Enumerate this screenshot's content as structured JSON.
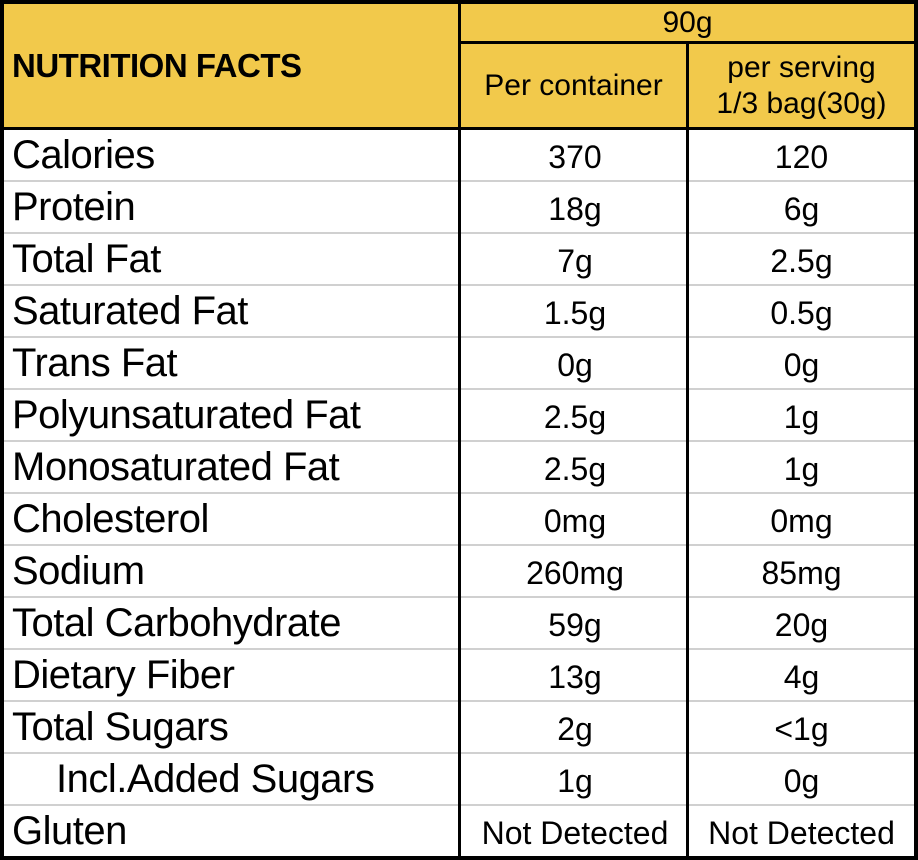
{
  "header": {
    "title": "NUTRITION FACTS",
    "serving_size": "90g",
    "col_per_container": "Per container",
    "col_per_serving_line1": "per serving",
    "col_per_serving_line2": "1/3 bag(30g)"
  },
  "rows": [
    {
      "label": "Calories",
      "per_container": "370",
      "per_serving": "120",
      "indent": false
    },
    {
      "label": "Protein",
      "per_container": "18g",
      "per_serving": "6g",
      "indent": false
    },
    {
      "label": "Total Fat",
      "per_container": "7g",
      "per_serving": "2.5g",
      "indent": false
    },
    {
      "label": "Saturated Fat",
      "per_container": "1.5g",
      "per_serving": "0.5g",
      "indent": false
    },
    {
      "label": "Trans Fat",
      "per_container": "0g",
      "per_serving": "0g",
      "indent": false
    },
    {
      "label": "Polyunsaturated Fat",
      "per_container": "2.5g",
      "per_serving": "1g",
      "indent": false
    },
    {
      "label": "Monosaturated Fat",
      "per_container": "2.5g",
      "per_serving": "1g",
      "indent": false
    },
    {
      "label": "Cholesterol",
      "per_container": "0mg",
      "per_serving": "0mg",
      "indent": false
    },
    {
      "label": "Sodium",
      "per_container": "260mg",
      "per_serving": "85mg",
      "indent": false
    },
    {
      "label": "Total Carbohydrate",
      "per_container": "59g",
      "per_serving": "20g",
      "indent": false
    },
    {
      "label": "Dietary Fiber",
      "per_container": "13g",
      "per_serving": "4g",
      "indent": false
    },
    {
      "label": "Total Sugars",
      "per_container": "2g",
      "per_serving": "<1g",
      "indent": false
    },
    {
      "label": "Incl.Added Sugars",
      "per_container": "1g",
      "per_serving": "0g",
      "indent": true
    },
    {
      "label": "Gluten",
      "per_container": "Not Detected",
      "per_serving": "Not Detected",
      "indent": false
    }
  ],
  "colors": {
    "header_bg": "#F2C94B",
    "border": "#000000",
    "row_divider": "#D0D0D0",
    "text": "#000000"
  }
}
